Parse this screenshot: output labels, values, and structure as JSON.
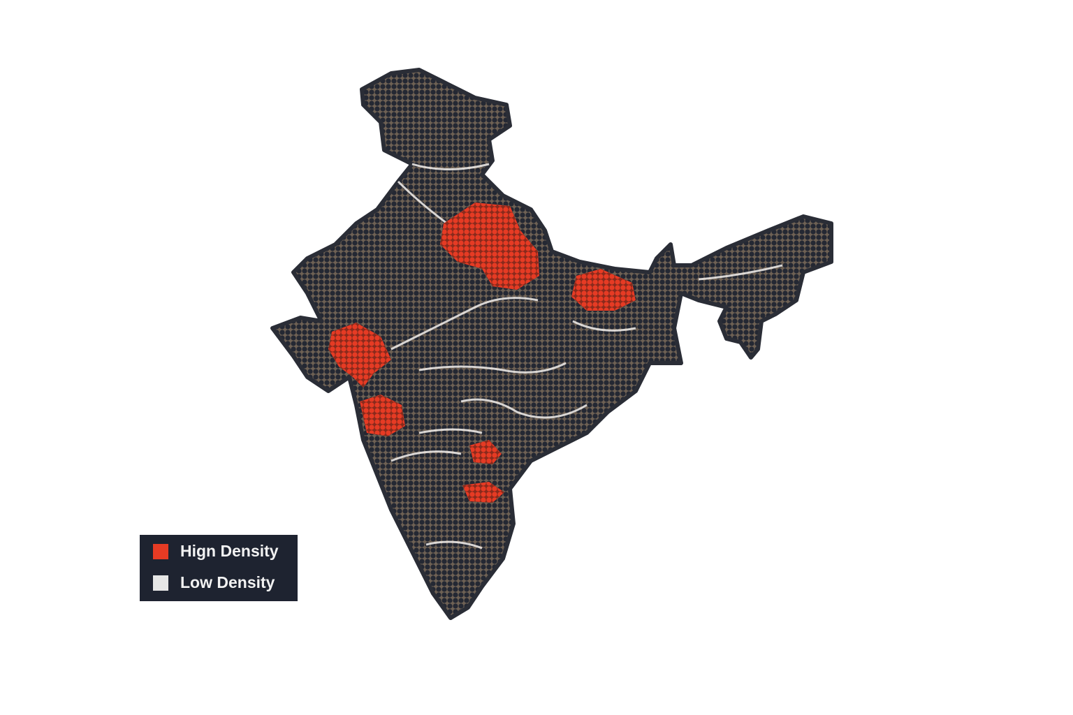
{
  "legend": {
    "items": [
      {
        "label": "Hign Density",
        "color": "#e63b24"
      },
      {
        "label": "Low Density",
        "color": "#e6e6e6"
      }
    ]
  }
}
